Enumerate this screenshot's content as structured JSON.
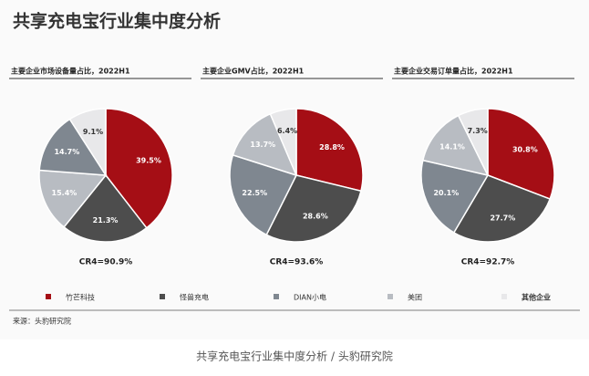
{
  "title": "共享充电宝行业集中度分析",
  "chart_data": [
    {
      "type": "pie",
      "title": "主要企业市场设备量占比，2022H1",
      "values": [
        39.5,
        21.3,
        15.4,
        14.7,
        9.1
      ],
      "value_labels": [
        "39.5%",
        "21.3%",
        "15.4%",
        "14.7%",
        "9.1%"
      ],
      "colors": [
        "#a50e15",
        "#4d4d4d",
        "#b8bcc2",
        "#7f8790",
        "#e8e8ea"
      ],
      "annotation": "CR4=90.9%"
    },
    {
      "type": "pie",
      "title": "主要企业GMV占比，2022H1",
      "values": [
        28.8,
        28.6,
        22.5,
        13.7,
        6.4
      ],
      "value_labels": [
        "28.8%",
        "28.6%",
        "22.5%",
        "13.7%",
        "6.4%"
      ],
      "colors": [
        "#a50e15",
        "#4d4d4d",
        "#7f8790",
        "#b8bcc2",
        "#e8e8ea"
      ],
      "annotation": "CR4=93.6%"
    },
    {
      "type": "pie",
      "title": "主要企业交易订单量占比，2022H1",
      "values": [
        30.8,
        27.7,
        20.1,
        14.1,
        7.3
      ],
      "value_labels": [
        "30.8%",
        "27.7%",
        "20.1%",
        "14.1%",
        "7.3%"
      ],
      "colors": [
        "#a50e15",
        "#4d4d4d",
        "#7f8790",
        "#b8bcc2",
        "#e8e8ea"
      ],
      "annotation": "CR4=92.7%"
    }
  ],
  "legend": {
    "items": [
      "竹芒科技",
      "怪兽充电",
      "DIAN小电",
      "美团",
      "其他企业"
    ],
    "colors": [
      "#a50e15",
      "#4d4d4d",
      "#7f8790",
      "#b8bcc2",
      "#e8e8ea"
    ]
  },
  "source": "来源：头豹研究院",
  "caption": "共享充电宝行业集中度分析 / 头豹研究院"
}
